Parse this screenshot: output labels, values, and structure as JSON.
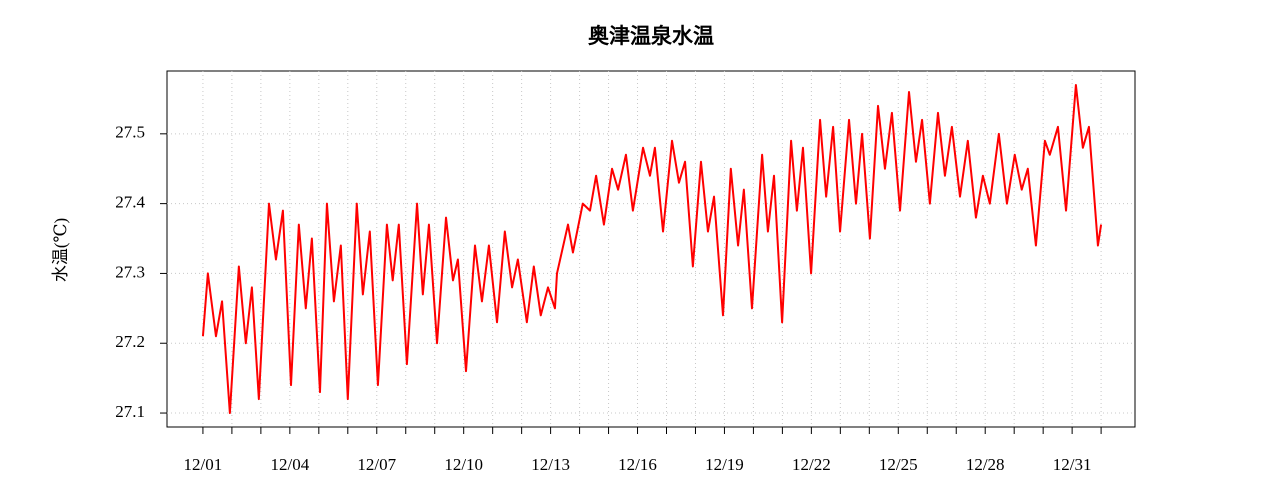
{
  "chart_data": {
    "type": "line",
    "title": "奥津温泉水温",
    "ylabel": "水温(℃)",
    "grid": true,
    "xlim": [
      -1.24,
      32.17
    ],
    "ylim": [
      27.08,
      27.59
    ],
    "yticks": [
      27.1,
      27.2,
      27.3,
      27.4,
      27.5
    ],
    "xticks": [
      {
        "value": 0,
        "label": "12/01"
      },
      {
        "value": 3,
        "label": "12/04"
      },
      {
        "value": 6,
        "label": "12/07"
      },
      {
        "value": 9,
        "label": "12/10"
      },
      {
        "value": 12,
        "label": "12/13"
      },
      {
        "value": 15,
        "label": "12/16"
      },
      {
        "value": 18,
        "label": "12/19"
      },
      {
        "value": 21,
        "label": "12/22"
      },
      {
        "value": 24,
        "label": "12/25"
      },
      {
        "value": 27,
        "label": "12/28"
      },
      {
        "value": 30,
        "label": "12/31"
      }
    ],
    "x_minor_ticks": [
      0,
      1,
      2,
      3,
      4,
      5,
      6,
      7,
      8,
      9,
      10,
      11,
      12,
      13,
      14,
      15,
      16,
      17,
      18,
      19,
      20,
      21,
      22,
      23,
      24,
      25,
      26,
      27,
      28,
      29,
      30,
      31
    ],
    "x": [
      0,
      0.17,
      0.45,
      0.66,
      0.93,
      1.24,
      1.48,
      1.69,
      1.93,
      2.28,
      2.52,
      2.76,
      3.04,
      3.31,
      3.55,
      3.76,
      4.04,
      4.28,
      4.52,
      4.76,
      5.0,
      5.31,
      5.52,
      5.76,
      6.04,
      6.35,
      6.55,
      6.76,
      7.04,
      7.39,
      7.59,
      7.8,
      8.08,
      8.39,
      8.63,
      8.8,
      9.08,
      9.39,
      9.63,
      9.87,
      10.15,
      10.42,
      10.67,
      10.87,
      11.18,
      11.42,
      11.66,
      11.91,
      12.15,
      12.22,
      12.6,
      12.77,
      13.11,
      13.36,
      13.57,
      13.84,
      14.12,
      14.33,
      14.6,
      14.84,
      15.19,
      15.43,
      15.6,
      15.88,
      16.19,
      16.43,
      16.64,
      16.91,
      17.19,
      17.43,
      17.64,
      17.95,
      18.22,
      18.47,
      18.67,
      18.95,
      19.3,
      19.5,
      19.71,
      19.99,
      20.3,
      20.5,
      20.71,
      20.99,
      21.3,
      21.51,
      21.75,
      21.99,
      22.3,
      22.54,
      22.75,
      23.02,
      23.3,
      23.54,
      23.78,
      24.06,
      24.37,
      24.61,
      24.82,
      25.09,
      25.37,
      25.61,
      25.85,
      26.13,
      26.4,
      26.68,
      26.92,
      27.16,
      27.47,
      27.75,
      28.02,
      28.26,
      28.47,
      28.75,
      29.06,
      29.23,
      29.51,
      29.79,
      30.13,
      30.37,
      30.58,
      30.89,
      31.0
    ],
    "series": [
      {
        "color": "#ff0000",
        "values": [
          27.21,
          27.3,
          27.21,
          27.26,
          27.1,
          27.31,
          27.2,
          27.28,
          27.12,
          27.4,
          27.32,
          27.39,
          27.14,
          27.37,
          27.25,
          27.35,
          27.13,
          27.4,
          27.26,
          27.34,
          27.12,
          27.4,
          27.27,
          27.36,
          27.14,
          27.37,
          27.29,
          27.37,
          27.17,
          27.4,
          27.27,
          27.37,
          27.2,
          27.38,
          27.29,
          27.32,
          27.16,
          27.34,
          27.26,
          27.34,
          27.23,
          27.36,
          27.28,
          27.32,
          27.23,
          27.31,
          27.24,
          27.28,
          27.25,
          27.3,
          27.37,
          27.33,
          27.4,
          27.39,
          27.44,
          27.37,
          27.45,
          27.42,
          27.47,
          27.39,
          27.48,
          27.44,
          27.48,
          27.36,
          27.49,
          27.43,
          27.46,
          27.31,
          27.46,
          27.36,
          27.41,
          27.24,
          27.45,
          27.34,
          27.42,
          27.25,
          27.47,
          27.36,
          27.44,
          27.23,
          27.49,
          27.39,
          27.48,
          27.3,
          27.52,
          27.41,
          27.51,
          27.36,
          27.52,
          27.4,
          27.5,
          27.35,
          27.54,
          27.45,
          27.53,
          27.39,
          27.56,
          27.46,
          27.52,
          27.4,
          27.53,
          27.44,
          27.51,
          27.41,
          27.49,
          27.38,
          27.44,
          27.4,
          27.5,
          27.4,
          27.47,
          27.42,
          27.45,
          27.34,
          27.49,
          27.47,
          27.51,
          27.39,
          27.57,
          27.48,
          27.51,
          27.34,
          27.37
        ]
      }
    ]
  }
}
